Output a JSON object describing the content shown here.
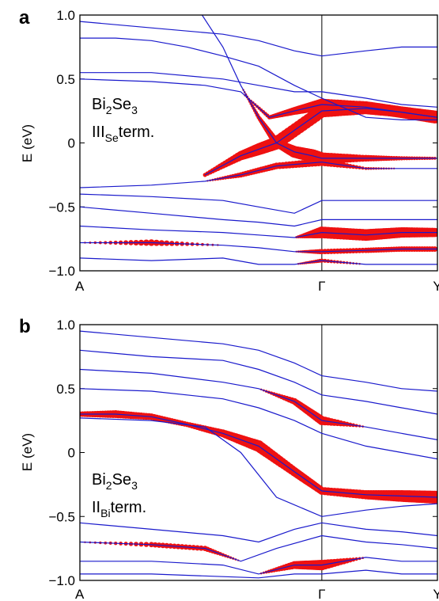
{
  "chart_data": [
    {
      "type": "line",
      "panel_label": "a",
      "ylabel": "E (eV)",
      "ylim": [
        -1.0,
        1.0
      ],
      "yticks": [
        {
          "value": 1.0,
          "label": "1.0"
        },
        {
          "value": 0.5,
          "label": "0.5"
        },
        {
          "value": 0.0,
          "label": "0"
        },
        {
          "value": -0.5,
          "label": "−0.5"
        },
        {
          "value": -1.0,
          "label": "−1.0"
        }
      ],
      "xlim": [
        0,
        1
      ],
      "kpoints": [
        {
          "pos": 0.0,
          "label": "A"
        },
        {
          "pos": 0.6767,
          "label": "Γ"
        },
        {
          "pos": 1.0,
          "label": "Y"
        }
      ],
      "annotation": {
        "line1_base": "Bi",
        "line1_sub1": "2",
        "line1_mid": "Se",
        "line1_sub2": "3",
        "line2_base": "III",
        "line2_sub": "Se",
        "line2_tail": "term."
      },
      "band_color": "#1a1acc",
      "weight_color": "#ee1111",
      "series": [
        {
          "x": [
            0.33,
            0.4,
            0.45,
            0.5,
            0.55,
            0.6,
            0.65,
            0.6767,
            0.8,
            0.9,
            1.0
          ],
          "y": [
            1.05,
            0.75,
            0.45,
            0.2,
            0.0,
            -0.07,
            -0.1,
            -0.12,
            -0.12,
            -0.12,
            -0.12
          ],
          "weight": [
            0,
            0,
            0,
            0.2,
            0.5,
            0.8,
            0.9,
            0.8,
            0.4,
            0.2,
            0.1
          ]
        },
        {
          "x": [
            0.0,
            0.1,
            0.2,
            0.3,
            0.4,
            0.5,
            0.6,
            0.6767,
            0.8,
            0.9,
            1.0
          ],
          "y": [
            0.82,
            0.82,
            0.8,
            0.75,
            0.68,
            0.6,
            0.45,
            0.35,
            0.2,
            0.18,
            0.18
          ],
          "weight": [
            0,
            0,
            0,
            0,
            0,
            0,
            0,
            0,
            0,
            0,
            0
          ]
        },
        {
          "x": [
            0.0,
            0.2,
            0.4,
            0.5,
            0.6,
            0.6767,
            0.8,
            0.9,
            1.0
          ],
          "y": [
            0.95,
            0.9,
            0.85,
            0.8,
            0.72,
            0.68,
            0.72,
            0.75,
            0.75
          ],
          "weight": [
            0,
            0,
            0,
            0,
            0,
            0,
            0,
            0,
            0
          ]
        },
        {
          "x": [
            0.0,
            0.2,
            0.4,
            0.5,
            0.6,
            0.6767,
            0.8,
            0.9,
            1.0
          ],
          "y": [
            0.55,
            0.55,
            0.5,
            0.45,
            0.4,
            0.4,
            0.35,
            0.3,
            0.28
          ],
          "weight": [
            0,
            0,
            0,
            0,
            0,
            0,
            0,
            0,
            0
          ]
        },
        {
          "x": [
            0.0,
            0.2,
            0.35,
            0.45,
            0.53,
            0.6,
            0.6767,
            0.8,
            0.9,
            1.0
          ],
          "y": [
            0.5,
            0.48,
            0.45,
            0.4,
            0.2,
            0.25,
            0.3,
            0.28,
            0.24,
            0.2
          ],
          "weight": [
            0,
            0,
            0,
            0,
            0.2,
            0.5,
            0.8,
            0.8,
            0.8,
            0.9
          ]
        },
        {
          "x": [
            0.35,
            0.45,
            0.5,
            0.55,
            0.6767,
            0.8,
            0.9,
            1.0
          ],
          "y": [
            -0.25,
            -0.1,
            -0.05,
            0.0,
            0.25,
            0.27,
            0.24,
            0.2
          ],
          "weight": [
            0.2,
            0.6,
            0.8,
            0.9,
            0.9,
            0.8,
            0.7,
            0.8
          ]
        },
        {
          "x": [
            0.0,
            0.2,
            0.35,
            0.45,
            0.55,
            0.6767,
            0.8,
            0.9,
            1.0
          ],
          "y": [
            -0.35,
            -0.33,
            -0.3,
            -0.25,
            -0.18,
            -0.15,
            -0.2,
            -0.2,
            -0.2
          ],
          "weight": [
            0,
            0,
            0,
            0.3,
            0.4,
            0.5,
            0.1,
            0,
            0
          ]
        },
        {
          "x": [
            0.0,
            0.2,
            0.4,
            0.5,
            0.6,
            0.6767,
            0.8,
            0.9,
            1.0
          ],
          "y": [
            -0.4,
            -0.42,
            -0.45,
            -0.5,
            -0.55,
            -0.45,
            -0.45,
            -0.45,
            -0.45
          ],
          "weight": [
            0,
            0,
            0,
            0,
            0,
            0,
            0,
            0,
            0
          ]
        },
        {
          "x": [
            0.0,
            0.2,
            0.4,
            0.5,
            0.6,
            0.6767,
            0.8,
            0.9,
            1.0
          ],
          "y": [
            -0.5,
            -0.55,
            -0.6,
            -0.62,
            -0.65,
            -0.6,
            -0.6,
            -0.6,
            -0.6
          ],
          "weight": [
            0,
            0,
            0,
            0,
            0,
            0,
            0,
            0,
            0
          ]
        },
        {
          "x": [
            0.0,
            0.2,
            0.4,
            0.5,
            0.6,
            0.6767,
            0.8,
            0.9,
            1.0
          ],
          "y": [
            -0.65,
            -0.68,
            -0.7,
            -0.72,
            -0.74,
            -0.7,
            -0.72,
            -0.7,
            -0.7
          ],
          "weight": [
            0,
            0,
            0,
            0,
            0,
            0.8,
            0.8,
            0.7,
            0.6
          ]
        },
        {
          "x": [
            0.0,
            0.2,
            0.4,
            0.5,
            0.6,
            0.6767,
            0.8,
            0.9,
            1.0
          ],
          "y": [
            -0.78,
            -0.78,
            -0.8,
            -0.82,
            -0.85,
            -0.85,
            -0.84,
            -0.83,
            -0.83
          ],
          "weight": [
            0,
            0.4,
            0,
            0,
            0,
            0.3,
            0.3,
            0.3,
            0.3
          ]
        },
        {
          "x": [
            0.0,
            0.2,
            0.4,
            0.5,
            0.6,
            0.6767,
            0.8,
            0.9,
            1.0
          ],
          "y": [
            -0.9,
            -0.92,
            -0.9,
            -0.95,
            -0.95,
            -0.92,
            -0.95,
            -0.95,
            -0.95
          ],
          "weight": [
            0,
            0,
            0,
            0,
            0,
            0.2,
            0,
            0,
            0
          ]
        }
      ]
    },
    {
      "type": "line",
      "panel_label": "b",
      "ylabel": "E (eV)",
      "ylim": [
        -1.0,
        1.0
      ],
      "yticks": [
        {
          "value": 1.0,
          "label": "1.0"
        },
        {
          "value": 0.5,
          "label": "0.5"
        },
        {
          "value": 0.0,
          "label": "0"
        },
        {
          "value": -0.5,
          "label": "−0.5"
        },
        {
          "value": -1.0,
          "label": "−1.0"
        }
      ],
      "xlim": [
        0,
        1
      ],
      "kpoints": [
        {
          "pos": 0.0,
          "label": "A"
        },
        {
          "pos": 0.6767,
          "label": "Γ"
        },
        {
          "pos": 1.0,
          "label": "Y"
        }
      ],
      "annotation": {
        "line1_base": "Bi",
        "line1_sub1": "2",
        "line1_mid": "Se",
        "line1_sub2": "3",
        "line2_base": "II",
        "line2_sub": "Bi",
        "line2_tail": "term."
      },
      "band_color": "#1a1acc",
      "weight_color": "#ee1111",
      "series": [
        {
          "x": [
            0.0,
            0.1,
            0.2,
            0.3,
            0.4,
            0.5,
            0.6,
            0.6767,
            0.8,
            0.9,
            1.0
          ],
          "y": [
            0.3,
            0.3,
            0.28,
            0.22,
            0.15,
            0.05,
            -0.15,
            -0.3,
            -0.33,
            -0.34,
            -0.35
          ],
          "weight": [
            0.3,
            0.5,
            0.4,
            0.3,
            0.5,
            0.8,
            0.6,
            0.5,
            0.6,
            0.8,
            0.9
          ]
        },
        {
          "x": [
            0.0,
            0.2,
            0.35,
            0.45,
            0.55,
            0.6767,
            0.8,
            0.9,
            1.0
          ],
          "y": [
            0.27,
            0.25,
            0.2,
            0.0,
            -0.35,
            -0.5,
            -0.45,
            -0.42,
            -0.4
          ],
          "weight": [
            0,
            0,
            0,
            0,
            0,
            0,
            0,
            0,
            0
          ]
        },
        {
          "x": [
            0.0,
            0.2,
            0.4,
            0.5,
            0.6,
            0.6767,
            0.8,
            0.9,
            1.0
          ],
          "y": [
            0.95,
            0.9,
            0.85,
            0.8,
            0.7,
            0.6,
            0.55,
            0.5,
            0.48
          ],
          "weight": [
            0,
            0,
            0,
            0,
            0,
            0,
            0,
            0,
            0
          ]
        },
        {
          "x": [
            0.0,
            0.2,
            0.4,
            0.5,
            0.6,
            0.6767,
            0.8,
            0.9,
            1.0
          ],
          "y": [
            0.8,
            0.75,
            0.72,
            0.65,
            0.55,
            0.45,
            0.4,
            0.35,
            0.3
          ],
          "weight": [
            0,
            0,
            0,
            0,
            0,
            0,
            0,
            0,
            0
          ]
        },
        {
          "x": [
            0.0,
            0.2,
            0.4,
            0.5,
            0.6,
            0.6767,
            0.8,
            0.9,
            1.0
          ],
          "y": [
            0.65,
            0.62,
            0.55,
            0.5,
            0.4,
            0.25,
            0.2,
            0.15,
            0.1
          ],
          "weight": [
            0,
            0,
            0,
            0,
            0.4,
            0.6,
            0,
            0,
            0
          ]
        },
        {
          "x": [
            0.0,
            0.2,
            0.4,
            0.5,
            0.6,
            0.6767,
            0.8,
            0.9,
            1.0
          ],
          "y": [
            0.5,
            0.48,
            0.42,
            0.35,
            0.25,
            0.15,
            0.05,
            0.0,
            -0.05
          ],
          "weight": [
            0,
            0,
            0,
            0,
            0,
            0,
            0,
            0,
            0
          ]
        },
        {
          "x": [
            0.0,
            0.2,
            0.4,
            0.5,
            0.6,
            0.6767,
            0.8,
            0.9,
            1.0
          ],
          "y": [
            -0.55,
            -0.6,
            -0.65,
            -0.7,
            -0.6,
            -0.55,
            -0.6,
            -0.62,
            -0.65
          ],
          "weight": [
            0,
            0,
            0,
            0,
            0,
            0,
            0,
            0,
            0
          ]
        },
        {
          "x": [
            0.0,
            0.2,
            0.35,
            0.45,
            0.55,
            0.6767,
            0.8,
            0.9,
            1.0
          ],
          "y": [
            -0.7,
            -0.72,
            -0.75,
            -0.85,
            -0.75,
            -0.65,
            -0.7,
            -0.72,
            -0.75
          ],
          "weight": [
            0,
            0.3,
            0.3,
            0,
            0,
            0,
            0,
            0,
            0
          ]
        },
        {
          "x": [
            0.0,
            0.2,
            0.4,
            0.5,
            0.6,
            0.6767,
            0.8,
            0.9,
            1.0
          ],
          "y": [
            -0.85,
            -0.85,
            -0.88,
            -0.95,
            -0.88,
            -0.88,
            -0.82,
            -0.85,
            -0.85
          ],
          "weight": [
            0,
            0,
            0,
            0,
            0.5,
            0.7,
            0,
            0,
            0
          ]
        },
        {
          "x": [
            0.0,
            0.2,
            0.4,
            0.5,
            0.6,
            0.6767,
            0.8,
            0.9,
            1.0
          ],
          "y": [
            -0.95,
            -0.95,
            -0.97,
            -0.98,
            -0.95,
            -0.95,
            -0.92,
            -0.95,
            -0.95
          ],
          "weight": [
            0,
            0,
            0,
            0,
            0,
            0,
            0,
            0,
            0
          ]
        }
      ]
    }
  ]
}
